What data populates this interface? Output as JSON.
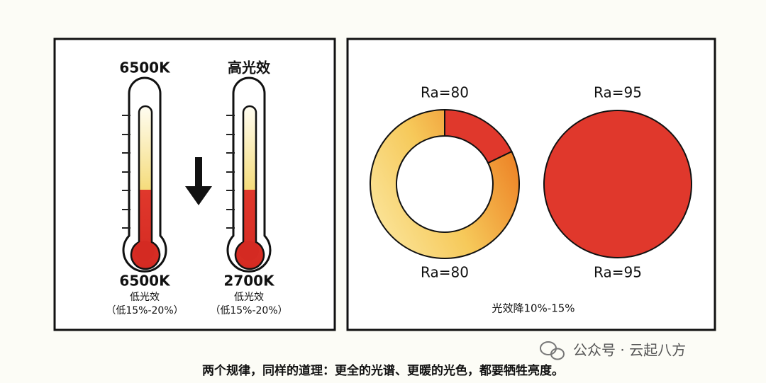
{
  "left_panel": {
    "thermometers": [
      {
        "top_label": "6500K",
        "bottom_label": "6500K",
        "efficacy": "低光效",
        "reduction": "（低15%-20%）"
      },
      {
        "top_label": "高光效",
        "bottom_label": "2700K",
        "efficacy": "低光效",
        "reduction": "（低15%-20%）"
      }
    ]
  },
  "right_panel": {
    "rings": [
      {
        "top_label": "Ra=80",
        "bottom_label": "Ra=80"
      },
      {
        "top_label": "Ra=95",
        "bottom_label": "Ra=95"
      }
    ],
    "note": "光效降10%-15%"
  },
  "watermark": "公众号 · 云起八方",
  "caption": "两个规律，同样的道理：更全的光谱、更暖的光色，都要牺牲亮度。"
}
